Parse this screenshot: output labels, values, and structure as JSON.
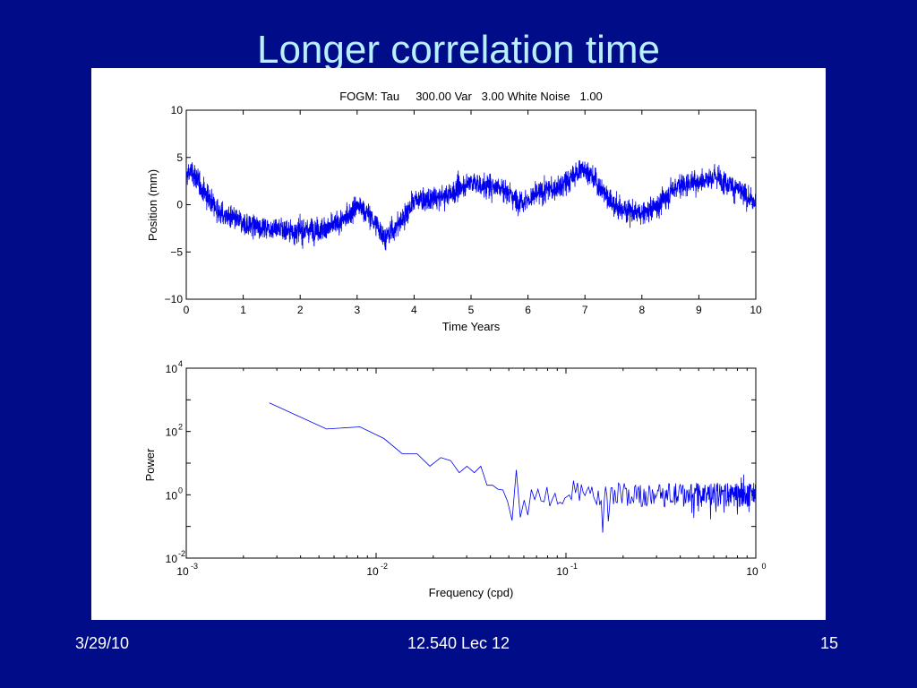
{
  "slide": {
    "title": "Longer correlation time",
    "footer_left": "3/29/10",
    "footer_center": "12.540 Lec 12",
    "footer_right": "15"
  },
  "colors": {
    "background": "#000c88",
    "title": "#b8f0ff",
    "series": "#0000ee",
    "panel": "#ffffff"
  },
  "chart_data": [
    {
      "type": "line",
      "title": "FOGM: Tau     300.00 Var   3.00 White Noise   1.00",
      "xlabel": "Time Years",
      "ylabel": "Position (mm)",
      "xlim": [
        0,
        10
      ],
      "ylim": [
        -10,
        10
      ],
      "xticks": [
        0,
        1,
        2,
        3,
        4,
        5,
        6,
        7,
        8,
        9,
        10
      ],
      "yticks": [
        -10,
        -5,
        0,
        5,
        10
      ],
      "grid": false,
      "trend": {
        "x": [
          0,
          0.1,
          0.3,
          0.6,
          1.0,
          1.5,
          2.0,
          2.5,
          2.8,
          3.0,
          3.2,
          3.5,
          3.8,
          4.0,
          4.3,
          4.6,
          5.0,
          5.2,
          5.5,
          5.8,
          6.0,
          6.3,
          6.6,
          7.0,
          7.3,
          7.6,
          8.0,
          8.3,
          8.6,
          9.0,
          9.3,
          9.6,
          10.0
        ],
        "y": [
          3.0,
          3.5,
          1.5,
          -1.0,
          -2.0,
          -2.5,
          -2.8,
          -2.5,
          -1.5,
          0.0,
          -1.0,
          -3.5,
          -1.5,
          0.5,
          0.5,
          1.0,
          2.5,
          2.0,
          2.0,
          0.5,
          0.5,
          1.5,
          2.0,
          4.0,
          1.5,
          -0.5,
          -1.0,
          0.0,
          2.0,
          2.5,
          3.0,
          2.0,
          0.0
        ]
      },
      "noise_amplitude": 1.2,
      "samples": 3650
    },
    {
      "type": "line",
      "xlabel": "Frequency (cpd)",
      "ylabel": "Power",
      "xscale": "log",
      "yscale": "log",
      "xlim": [
        0.001,
        1
      ],
      "ylim": [
        0.01,
        10000
      ],
      "xtick_bases": [
        "10",
        "10",
        "10",
        "10"
      ],
      "xtick_exponents": [
        "-3",
        "-2",
        "-1",
        "0"
      ],
      "ytick_bases": [
        "10",
        "10",
        "10",
        "10"
      ],
      "ytick_exponents": [
        "-2",
        "0",
        "2",
        "4"
      ],
      "grid": false,
      "x": [
        0.00274,
        0.00548,
        0.00822,
        0.011,
        0.0137,
        0.0164,
        0.0192,
        0.0219,
        0.0247,
        0.0274,
        0.0301,
        0.0329,
        0.0356,
        0.0384,
        0.0411,
        0.0438
      ],
      "y": [
        800,
        120,
        140,
        60,
        20,
        20,
        8,
        15,
        12,
        5,
        8,
        5,
        8,
        2,
        2,
        1.5
      ],
      "hf_level": 1.0,
      "hf_spread": 3.0
    }
  ]
}
